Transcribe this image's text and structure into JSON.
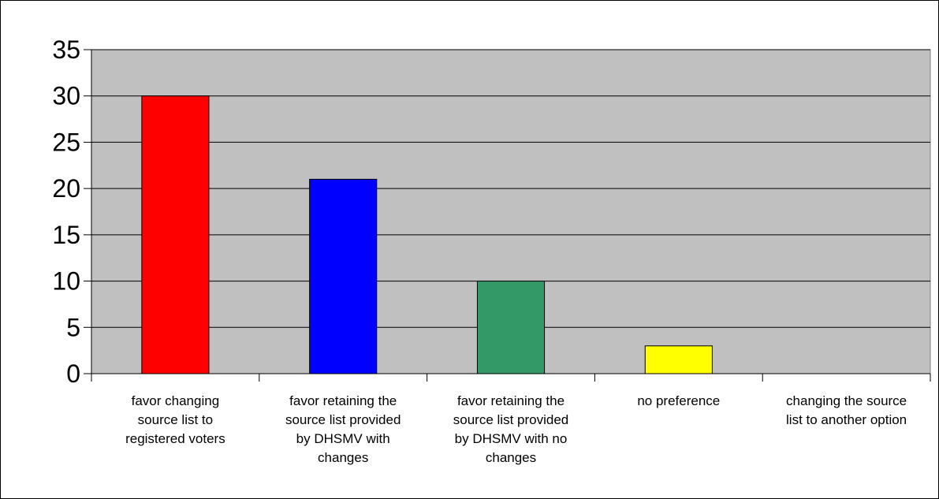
{
  "chart_data": {
    "type": "bar",
    "categories": [
      [
        "favor changing",
        "source list to",
        "registered voters"
      ],
      [
        "favor retaining the",
        "source list provided",
        "by DHSMV with",
        "changes"
      ],
      [
        "favor retaining the",
        "source list provided",
        "by DHSMV with no",
        "changes"
      ],
      [
        "no preference"
      ],
      [
        "changing the source",
        "list to another option"
      ]
    ],
    "values": [
      30,
      21,
      10,
      3,
      0
    ],
    "bar_colors": [
      "#ff0000",
      "#0000ff",
      "#339966",
      "#ffff00",
      "#999999"
    ],
    "plot_background": "#c0c0c0",
    "ylim": [
      0,
      35
    ],
    "yticks": [
      0,
      5,
      10,
      15,
      20,
      25,
      30,
      35
    ],
    "grid": true,
    "legend": false,
    "title": "",
    "xlabel": "",
    "ylabel": ""
  }
}
